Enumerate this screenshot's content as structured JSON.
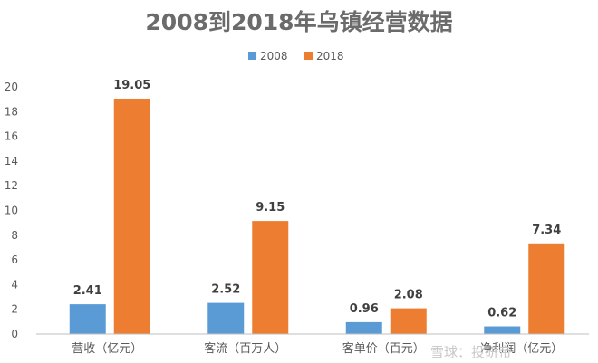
{
  "chart_data": {
    "type": "bar",
    "title": "2008到2018年乌镇经营数据",
    "categories": [
      "营收（亿元）",
      "客流（百万人）",
      "客单价（百元）",
      "净利润（亿元）"
    ],
    "series": [
      {
        "name": "2008",
        "values": [
          2.41,
          2.52,
          0.96,
          0.62
        ],
        "color": "#5b9bd5"
      },
      {
        "name": "2018",
        "values": [
          19.05,
          9.15,
          2.08,
          7.34
        ],
        "color": "#ed7d31"
      }
    ],
    "ylim": [
      0,
      20
    ],
    "yticks": [
      0,
      2,
      4,
      6,
      8,
      10,
      12,
      14,
      16,
      18,
      20
    ],
    "data_labels": true,
    "legend_position": "top",
    "grid": false
  },
  "watermark": "雪球：投研帝"
}
